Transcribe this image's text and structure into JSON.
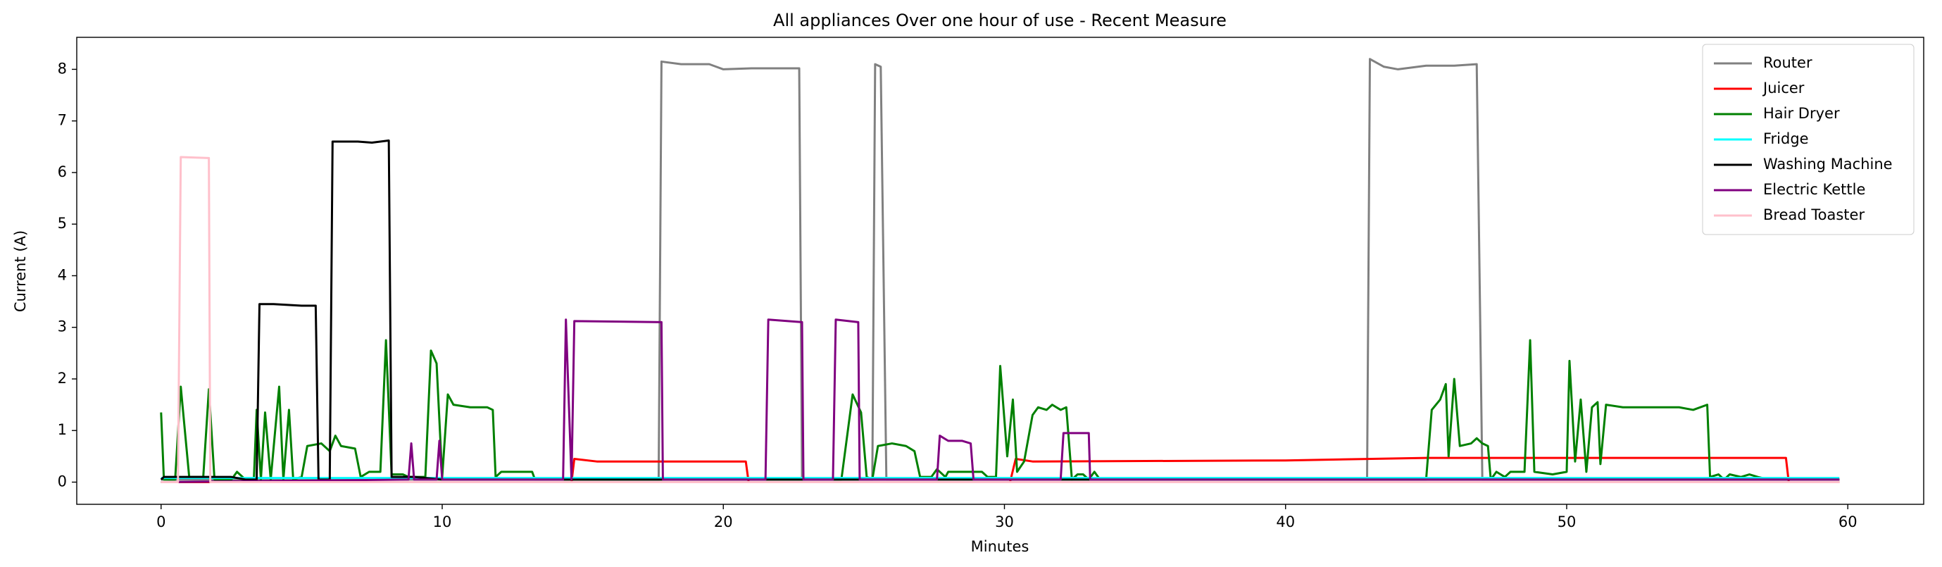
{
  "chart_data": {
    "type": "line",
    "title": "All appliances Over one hour of use - Recent Measure",
    "x_label": "Minutes",
    "y_label": "Current (A)",
    "xlim": [
      -3,
      62.7
    ],
    "ylim": [
      -0.43,
      8.62
    ],
    "xticks": [
      0,
      10,
      20,
      30,
      40,
      50,
      60
    ],
    "yticks": [
      0,
      1,
      2,
      3,
      4,
      5,
      6,
      7,
      8
    ],
    "grid": false,
    "legend": "upper right",
    "series": [
      {
        "name": "Router",
        "color": "#808080",
        "x": [
          0,
          17.7,
          17.8,
          18.5,
          19.5,
          20,
          21,
          22.7,
          22.8,
          25.3,
          25.4,
          25.6,
          25.8,
          42.9,
          43.0,
          43.5,
          44,
          45,
          46,
          46.8,
          47.0,
          59.7
        ],
        "values": [
          0.05,
          0.05,
          8.15,
          8.1,
          8.1,
          8.0,
          8.02,
          8.02,
          0.05,
          0.05,
          8.1,
          8.05,
          0.05,
          0.05,
          8.2,
          8.05,
          8.0,
          8.07,
          8.07,
          8.1,
          0.05,
          0.05
        ]
      },
      {
        "name": "Juicer",
        "color": "#ff0000",
        "x": [
          0,
          14.6,
          14.7,
          15.5,
          20.8,
          20.9,
          30.2,
          30.4,
          31,
          40,
          45,
          57.8,
          57.9,
          59.7
        ],
        "values": [
          0,
          0,
          0.45,
          0.4,
          0.4,
          0,
          0,
          0.45,
          0.4,
          0.42,
          0.47,
          0.47,
          0,
          0
        ]
      },
      {
        "name": "Hair Dryer",
        "color": "#008000",
        "x": [
          0,
          0.1,
          0.5,
          0.7,
          1.0,
          1.5,
          1.7,
          1.9,
          2.5,
          2.7,
          3.0,
          3.3,
          3.4,
          3.55,
          3.7,
          3.9,
          4.2,
          4.35,
          4.55,
          4.7,
          5.0,
          5.2,
          5.7,
          6.0,
          6.2,
          6.4,
          6.9,
          7.1,
          7.4,
          7.8,
          8.0,
          8.2,
          8.6,
          8.8,
          9.4,
          9.6,
          9.8,
          10.0,
          10.2,
          10.4,
          11.0,
          11.6,
          11.8,
          11.9,
          12.1,
          13.2,
          13.3,
          24.2,
          24.6,
          24.9,
          25.1,
          25.3,
          25.5,
          26,
          26.5,
          26.8,
          27.0,
          27.4,
          27.6,
          27.9,
          28.0,
          29.2,
          29.4,
          29.7,
          29.85,
          30.1,
          30.3,
          30.45,
          30.7,
          31.0,
          31.2,
          31.5,
          31.7,
          32.0,
          32.2,
          32.4,
          32.6,
          32.8,
          33.0,
          33.2,
          33.4,
          45.0,
          45.2,
          45.5,
          45.7,
          45.8,
          46.0,
          46.2,
          46.6,
          46.8,
          47.0,
          47.2,
          47.3,
          47.5,
          47.8,
          48.0,
          48.5,
          48.7,
          48.85,
          49.5,
          50.0,
          50.1,
          50.3,
          50.5,
          50.7,
          50.9,
          51.1,
          51.2,
          51.4,
          52,
          53,
          54,
          54.5,
          55,
          55.1,
          55.4,
          55.6,
          55.8,
          56.2,
          56.5,
          56.8,
          57.2,
          59.7
        ],
        "values": [
          1.35,
          0.05,
          0.05,
          1.85,
          0.1,
          0.1,
          1.8,
          0.05,
          0.05,
          0.2,
          0.05,
          0.05,
          1.4,
          0.05,
          1.35,
          0.05,
          1.85,
          0.05,
          1.4,
          0.05,
          0.1,
          0.7,
          0.75,
          0.6,
          0.9,
          0.7,
          0.65,
          0.1,
          0.2,
          0.2,
          2.75,
          0.15,
          0.15,
          0.1,
          0.1,
          2.55,
          2.3,
          0.1,
          1.7,
          1.5,
          1.45,
          1.45,
          1.4,
          0.1,
          0.2,
          0.2,
          0.05,
          0.05,
          1.7,
          1.35,
          0.1,
          0.05,
          0.7,
          0.75,
          0.7,
          0.6,
          0.1,
          0.1,
          0.25,
          0.1,
          0.2,
          0.2,
          0.1,
          0.1,
          2.25,
          0.5,
          1.6,
          0.2,
          0.4,
          1.3,
          1.45,
          1.4,
          1.5,
          1.4,
          1.45,
          0.05,
          0.15,
          0.15,
          0.05,
          0.2,
          0.05,
          0.05,
          1.4,
          1.6,
          1.9,
          0.5,
          2.0,
          0.7,
          0.75,
          0.85,
          0.75,
          0.7,
          0.05,
          0.2,
          0.1,
          0.2,
          0.2,
          2.75,
          0.2,
          0.15,
          0.2,
          2.35,
          0.4,
          1.6,
          0.2,
          1.45,
          1.55,
          0.35,
          1.5,
          1.45,
          1.45,
          1.45,
          1.4,
          1.5,
          0.1,
          0.15,
          0.05,
          0.15,
          0.1,
          0.15,
          0.1,
          0.05,
          0.05
        ]
      },
      {
        "name": "Fridge",
        "color": "#00ffff",
        "x": [
          0,
          59.7
        ],
        "values": [
          0.08,
          0.08
        ]
      },
      {
        "name": "Washing Machine",
        "color": "#000000",
        "x": [
          0,
          0.1,
          2.5,
          3.0,
          3.4,
          3.5,
          4,
          5.0,
          5.5,
          5.6,
          6.0,
          6.1,
          7,
          7.5,
          8.1,
          8.2,
          9,
          10,
          59.7
        ],
        "values": [
          0.05,
          0.1,
          0.1,
          0.05,
          0.05,
          3.45,
          3.45,
          3.42,
          3.42,
          0.05,
          0.05,
          6.6,
          6.6,
          6.58,
          6.62,
          0.1,
          0.1,
          0.05,
          0.05
        ]
      },
      {
        "name": "Electric Kettle",
        "color": "#800080",
        "x": [
          0,
          8.8,
          8.9,
          9.0,
          9.8,
          9.9,
          10.0,
          14.3,
          14.4,
          14.6,
          14.7,
          17.8,
          17.85,
          21.5,
          21.6,
          22.8,
          22.85,
          23.9,
          24.0,
          24.8,
          24.85,
          27.6,
          27.7,
          28.0,
          28.5,
          28.8,
          28.9,
          32.0,
          32.1,
          33,
          33.05,
          59.7
        ],
        "values": [
          0,
          0.05,
          0.75,
          0.05,
          0.05,
          0.8,
          0.05,
          0.05,
          3.15,
          0.05,
          3.12,
          3.1,
          0.05,
          0.05,
          3.15,
          3.1,
          0.05,
          0.05,
          3.15,
          3.1,
          0.05,
          0.05,
          0.9,
          0.8,
          0.8,
          0.75,
          0.05,
          0.05,
          0.95,
          0.95,
          0.05,
          0.05
        ]
      },
      {
        "name": "Bread Toaster",
        "color": "#ffc0cb",
        "x": [
          0,
          0.6,
          0.7,
          1.7,
          1.75,
          59.7
        ],
        "values": [
          0,
          0,
          6.3,
          6.28,
          0,
          0
        ]
      }
    ]
  }
}
